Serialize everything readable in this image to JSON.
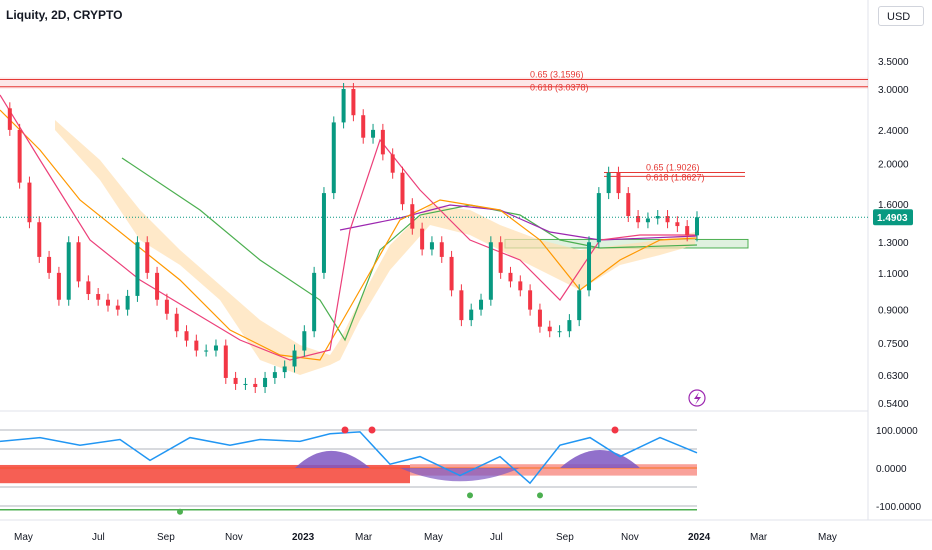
{
  "header": {
    "title": "Liquity, 2D, CRYPTO",
    "currency": "USD"
  },
  "chart_data": {
    "type": "line",
    "title": "Liquity, 2D, CRYPTO",
    "price_axis": {
      "scale": "log",
      "ticks": [
        3.5,
        3.0,
        2.4,
        2.0,
        1.6,
        1.3,
        1.1,
        0.9,
        0.75,
        0.63,
        0.54
      ],
      "labels": [
        "3.5000",
        "3.0000",
        "2.4000",
        "2.0000",
        "1.6000",
        "1.3000",
        "1.1000",
        "0.9000",
        "0.7500",
        "0.6300",
        "0.5400"
      ]
    },
    "x_labels": [
      "May",
      "Jul",
      "Sep",
      "Nov",
      "2023",
      "Mar",
      "May",
      "Jul",
      "Sep",
      "Nov",
      "2024",
      "Mar",
      "May"
    ],
    "bold_x_labels": [
      "2023",
      "2024"
    ],
    "last_price": {
      "value": 1.4903,
      "label": "1.4903",
      "color": "#089981"
    },
    "fib_levels": [
      {
        "label": "0.65 (3.1596)",
        "value": 3.1596
      },
      {
        "label": "0.618 (3.0378)",
        "value": 3.0378
      },
      {
        "label": "0.65 (1.9026)",
        "value": 1.9026
      },
      {
        "label": "0.618 (1.8627)",
        "value": 1.8627
      }
    ],
    "zone": {
      "low": 1.26,
      "high": 1.32
    },
    "price_series": [
      {
        "t": 0,
        "p": 2.7
      },
      {
        "t": 2,
        "p": 2.4
      },
      {
        "t": 4,
        "p": 1.8
      },
      {
        "t": 6,
        "p": 1.45
      },
      {
        "t": 8,
        "p": 1.2
      },
      {
        "t": 10,
        "p": 1.1
      },
      {
        "t": 12,
        "p": 0.95
      },
      {
        "t": 14,
        "p": 1.3
      },
      {
        "t": 16,
        "p": 1.05
      },
      {
        "t": 18,
        "p": 0.98
      },
      {
        "t": 20,
        "p": 0.95
      },
      {
        "t": 22,
        "p": 0.92
      },
      {
        "t": 24,
        "p": 0.9
      },
      {
        "t": 26,
        "p": 0.97
      },
      {
        "t": 28,
        "p": 1.3
      },
      {
        "t": 30,
        "p": 1.1
      },
      {
        "t": 32,
        "p": 0.95
      },
      {
        "t": 34,
        "p": 0.88
      },
      {
        "t": 36,
        "p": 0.8
      },
      {
        "t": 38,
        "p": 0.76
      },
      {
        "t": 40,
        "p": 0.72
      },
      {
        "t": 42,
        "p": 0.72
      },
      {
        "t": 44,
        "p": 0.74
      },
      {
        "t": 46,
        "p": 0.62
      },
      {
        "t": 48,
        "p": 0.6
      },
      {
        "t": 50,
        "p": 0.6
      },
      {
        "t": 52,
        "p": 0.59
      },
      {
        "t": 54,
        "p": 0.62
      },
      {
        "t": 56,
        "p": 0.64
      },
      {
        "t": 58,
        "p": 0.66
      },
      {
        "t": 60,
        "p": 0.72
      },
      {
        "t": 62,
        "p": 0.8
      },
      {
        "t": 64,
        "p": 1.1
      },
      {
        "t": 66,
        "p": 1.7
      },
      {
        "t": 68,
        "p": 2.5
      },
      {
        "t": 70,
        "p": 3.0
      },
      {
        "t": 72,
        "p": 2.6
      },
      {
        "t": 74,
        "p": 2.3
      },
      {
        "t": 76,
        "p": 2.4
      },
      {
        "t": 78,
        "p": 2.1
      },
      {
        "t": 80,
        "p": 1.9
      },
      {
        "t": 82,
        "p": 1.6
      },
      {
        "t": 84,
        "p": 1.4
      },
      {
        "t": 86,
        "p": 1.25
      },
      {
        "t": 88,
        "p": 1.3
      },
      {
        "t": 90,
        "p": 1.2
      },
      {
        "t": 92,
        "p": 1.0
      },
      {
        "t": 94,
        "p": 0.85
      },
      {
        "t": 96,
        "p": 0.9
      },
      {
        "t": 98,
        "p": 0.95
      },
      {
        "t": 100,
        "p": 1.3
      },
      {
        "t": 102,
        "p": 1.1
      },
      {
        "t": 104,
        "p": 1.05
      },
      {
        "t": 106,
        "p": 1.0
      },
      {
        "t": 108,
        "p": 0.9
      },
      {
        "t": 110,
        "p": 0.82
      },
      {
        "t": 112,
        "p": 0.8
      },
      {
        "t": 114,
        "p": 0.8
      },
      {
        "t": 116,
        "p": 0.85
      },
      {
        "t": 118,
        "p": 1.0
      },
      {
        "t": 120,
        "p": 1.3
      },
      {
        "t": 122,
        "p": 1.7
      },
      {
        "t": 124,
        "p": 1.9
      },
      {
        "t": 126,
        "p": 1.7
      },
      {
        "t": 128,
        "p": 1.5
      },
      {
        "t": 130,
        "p": 1.45
      },
      {
        "t": 132,
        "p": 1.48
      },
      {
        "t": 134,
        "p": 1.5
      },
      {
        "t": 136,
        "p": 1.45
      },
      {
        "t": 138,
        "p": 1.42
      },
      {
        "t": 140,
        "p": 1.35
      },
      {
        "t": 142,
        "p": 1.49
      }
    ],
    "oscillator": {
      "ticks": [
        100,
        0,
        -100
      ],
      "labels": [
        "100.0000",
        "0.0000",
        "-100.0000"
      ]
    }
  },
  "colors": {
    "up": "#089981",
    "down": "#f23645",
    "fib": "#e53935",
    "ma_purple": "#9c27b0",
    "ma_green": "#4caf50",
    "ma_orange": "#ff9800",
    "band_fill": "#ffe0b2",
    "osc_blue": "#2196f3"
  }
}
